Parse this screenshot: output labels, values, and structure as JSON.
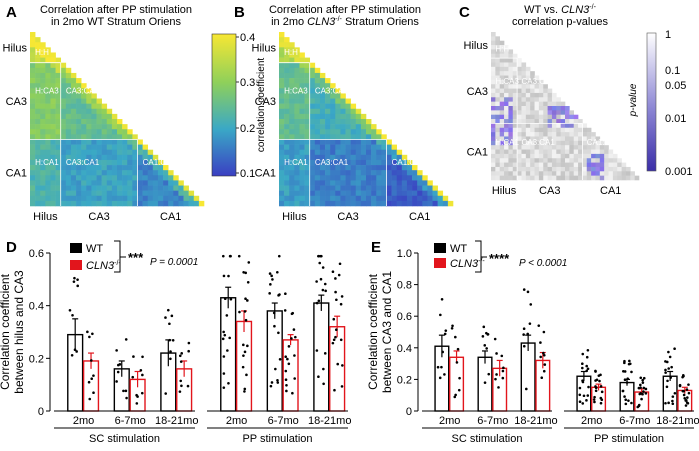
{
  "panels": {
    "A": {
      "letter": "A",
      "title1": "Correlation after PP stimulation",
      "title2": "in 2mo WT Stratum Oriens"
    },
    "B": {
      "letter": "B",
      "title1": "Correlation after PP stimulation",
      "title2_prefix": "in 2mo ",
      "title2_italic": "CLN3",
      "title2_sup": "-/-",
      "title2_suffix": " Stratum Oriens"
    },
    "C": {
      "letter": "C",
      "title1_prefix": "WT vs. ",
      "title1_italic": "CLN3",
      "title1_sup": "-/-",
      "title2": "correlation p-values"
    },
    "D": {
      "letter": "D"
    },
    "E": {
      "letter": "E"
    }
  },
  "colors": {
    "wt": "#000000",
    "cln3": "#e2151c",
    "heat_low": "#3a3fc2",
    "heat_mid": "#3aa8c6",
    "heat_high": "#f7e733",
    "p_sig": "#4b3fb5",
    "p_ns": "#dcdcdc"
  },
  "heatmap_regions": [
    "Hilus",
    "CA3",
    "CA1"
  ],
  "heatmap_cells": [
    "H:H",
    "H:CA3",
    "CA3:CA3",
    "H:CA1",
    "CA3:CA1",
    "CA1:CA1"
  ],
  "colorbar_AB": {
    "label": "correlation coefficient",
    "ticks": [
      "0.4",
      "0.3",
      "0.2",
      "0.1"
    ]
  },
  "colorbar_C": {
    "label": "p-value",
    "ticks": [
      "1",
      "0.1",
      "0.05",
      "0.01",
      "0.001"
    ]
  },
  "legend": {
    "wt": "WT",
    "cln3": "CLN3",
    "cln3_sup": "-/-"
  },
  "stats": {
    "D": {
      "stars": "***",
      "p_text": "P = 0.0001"
    },
    "E": {
      "stars": "****",
      "p_text": "P < 0.0001"
    }
  },
  "chart_data": [
    {
      "type": "bar",
      "panel": "D",
      "ylabel_line1": "Correlation coefficient",
      "ylabel_line2": "between hilus and CA3",
      "ylim": [
        0,
        0.6
      ],
      "yticks": [
        "0",
        "0.2",
        "0.4",
        "0.6"
      ],
      "categories": [
        "2mo",
        "6-7mo",
        "18-21mo",
        "2mo",
        "6-7mo",
        "18-21mo"
      ],
      "groups": [
        "SC stimulation",
        "PP stimulation"
      ],
      "series": [
        {
          "name": "WT",
          "values": [
            0.29,
            0.16,
            0.22,
            0.43,
            0.38,
            0.41
          ],
          "errors": [
            0.06,
            0.03,
            0.05,
            0.04,
            0.03,
            0.03
          ]
        },
        {
          "name": "CLN3-/-",
          "values": [
            0.19,
            0.12,
            0.16,
            0.34,
            0.27,
            0.32
          ],
          "errors": [
            0.03,
            0.03,
            0.03,
            0.04,
            0.02,
            0.04
          ]
        }
      ]
    },
    {
      "type": "bar",
      "panel": "E",
      "ylabel_line1": "Correlation coefficient",
      "ylabel_line2": "between CA3 and CA1",
      "ylim": [
        0,
        1.0
      ],
      "yticks": [
        "0",
        "0.2",
        "0.4",
        "0.6",
        "0.8",
        "1.0"
      ],
      "categories": [
        "2mo",
        "6-7mo",
        "18-21mo",
        "2mo",
        "6-7mo",
        "18-21mo"
      ],
      "groups": [
        "SC stimulation",
        "PP stimulation"
      ],
      "series": [
        {
          "name": "WT",
          "values": [
            0.41,
            0.34,
            0.43,
            0.22,
            0.18,
            0.22
          ],
          "errors": [
            0.07,
            0.04,
            0.05,
            0.03,
            0.02,
            0.03
          ]
        },
        {
          "name": "CLN3-/-",
          "values": [
            0.34,
            0.27,
            0.32,
            0.15,
            0.12,
            0.13
          ],
          "errors": [
            0.04,
            0.05,
            0.05,
            0.02,
            0.02,
            0.02
          ]
        }
      ]
    }
  ]
}
